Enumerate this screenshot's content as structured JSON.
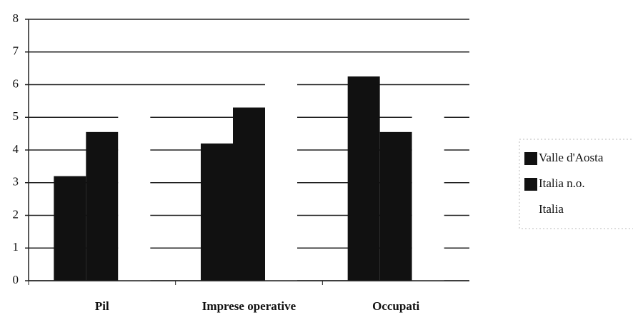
{
  "chart_data": {
    "type": "bar",
    "categories": [
      "Pil",
      "Imprese operative",
      "Occupati"
    ],
    "series": [
      {
        "name": "Valle d'Aosta",
        "color": "#111111",
        "values": [
          3.2,
          4.2,
          6.25
        ]
      },
      {
        "name": "Italia n.o.",
        "color": "#111111",
        "values": [
          4.55,
          5.3,
          4.55
        ]
      },
      {
        "name": "Italia",
        "color": "#ffffff",
        "values": [
          5.5,
          6.5,
          5.5
        ]
      }
    ],
    "ylim": [
      0,
      8
    ],
    "yticks": [
      0,
      1,
      2,
      3,
      4,
      5,
      6,
      7,
      8
    ],
    "grid": true
  }
}
